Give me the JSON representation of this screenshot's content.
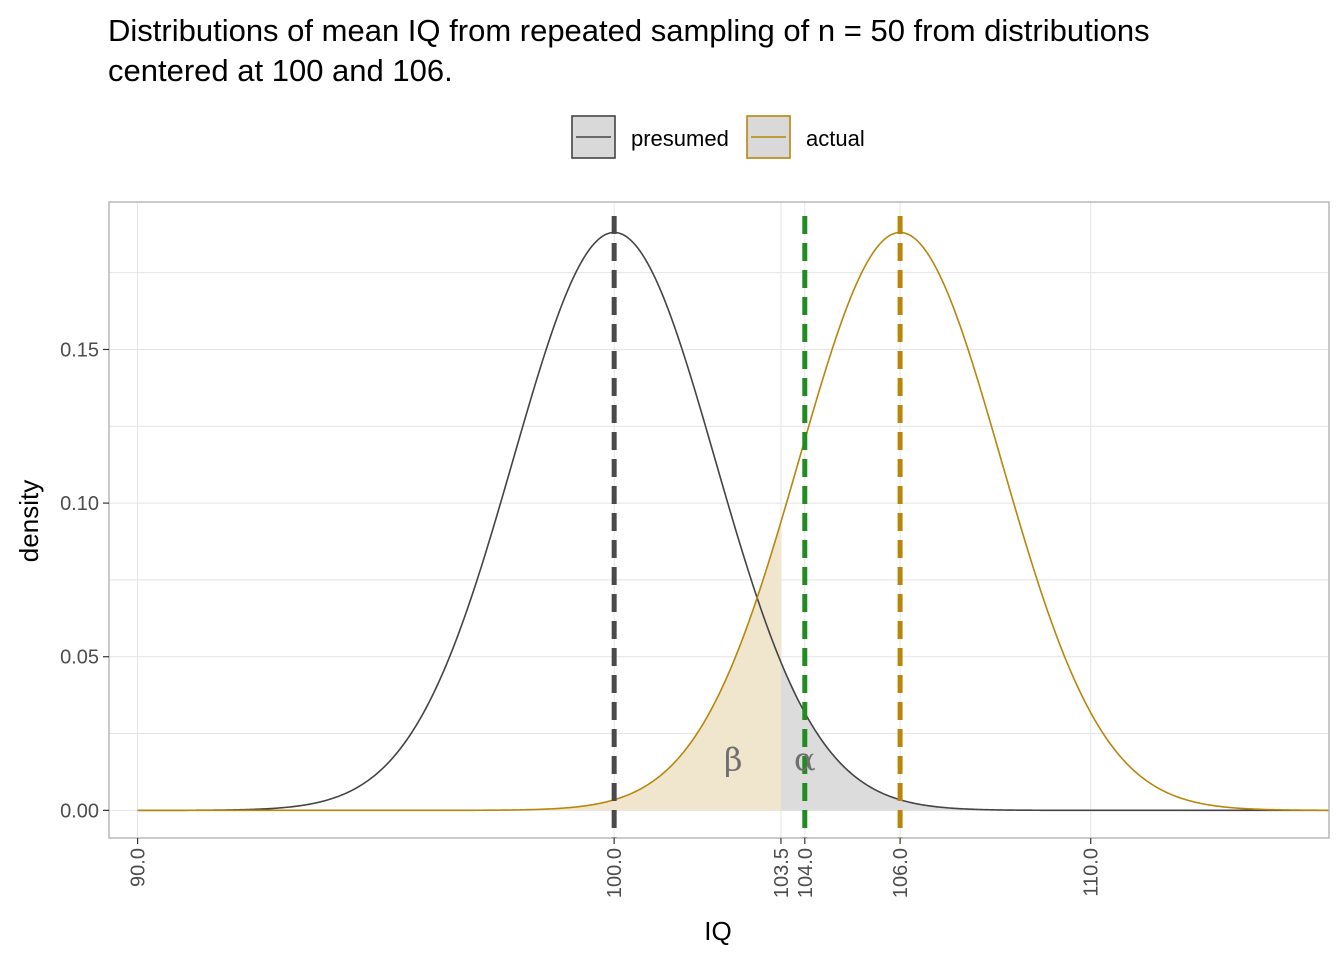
{
  "chart_data": {
    "type": "area",
    "title_lines": [
      "Distributions of mean IQ from repeated sampling of n = 50 from distributions",
      "centered at 100 and 106."
    ],
    "xlabel": "IQ",
    "ylabel": "density",
    "xlim": [
      89.4,
      115.0
    ],
    "ylim": [
      -0.009,
      0.198
    ],
    "x_ticks": [
      {
        "value": 90,
        "label": "90.0"
      },
      {
        "value": 100,
        "label": "100.0"
      },
      {
        "value": 103.5,
        "label": "103.5"
      },
      {
        "value": 104,
        "label": "104.0"
      },
      {
        "value": 106,
        "label": "106.0"
      },
      {
        "value": 110,
        "label": "110.0"
      }
    ],
    "y_ticks": [
      {
        "value": 0.0,
        "label": "0.00"
      },
      {
        "value": 0.05,
        "label": "0.05"
      },
      {
        "value": 0.1,
        "label": "0.10"
      },
      {
        "value": 0.15,
        "label": "0.15"
      }
    ],
    "x_grid": [
      90,
      100,
      103.5,
      104,
      106,
      110
    ],
    "y_grid": [
      0.0,
      0.025,
      0.05,
      0.075,
      0.1,
      0.125,
      0.15,
      0.175
    ],
    "grid": true,
    "legend_position": "top",
    "legend": [
      {
        "label": "presumed",
        "line_color": "#444444",
        "fill": "#d9d9d9"
      },
      {
        "label": "actual",
        "line_color": "#b8860b",
        "fill": "#d9d9d9"
      }
    ],
    "x_range": [
      90,
      115
    ],
    "series": [
      {
        "name": "presumed",
        "distribution": "normal",
        "mean": 100,
        "sd": 2.121,
        "color": "#444444"
      },
      {
        "name": "actual",
        "distribution": "normal",
        "mean": 106,
        "sd": 2.121,
        "color": "#b8860b"
      }
    ],
    "shaded_regions": [
      {
        "label": "β",
        "series": "actual",
        "x_from": 90,
        "x_to": 103.5,
        "fill": "#f0e6ce",
        "label_x": 102.5,
        "label_y": 0.013
      },
      {
        "label": "α",
        "series": "presumed",
        "x_from": 103.5,
        "x_to": 115,
        "fill": "#dcdcdc",
        "label_x": 104.0,
        "label_y": 0.013
      }
    ],
    "vertical_lines": [
      {
        "x": 100,
        "color": "#4a4a4a",
        "style": "dashed"
      },
      {
        "x": 104,
        "color": "#228b22",
        "style": "dashed"
      },
      {
        "x": 106,
        "color": "#b8860b",
        "style": "dashed"
      }
    ]
  }
}
